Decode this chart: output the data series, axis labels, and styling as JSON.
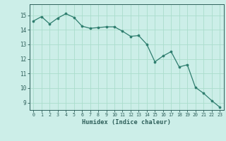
{
  "x": [
    0,
    1,
    2,
    3,
    4,
    5,
    6,
    7,
    8,
    9,
    10,
    11,
    12,
    13,
    14,
    15,
    16,
    17,
    18,
    19,
    20,
    21,
    22,
    23
  ],
  "y": [
    14.6,
    14.9,
    14.4,
    14.8,
    15.1,
    14.85,
    14.25,
    14.1,
    14.15,
    14.2,
    14.2,
    13.9,
    13.55,
    13.6,
    13.0,
    11.8,
    12.2,
    12.5,
    11.45,
    11.6,
    10.05,
    9.65,
    9.15,
    8.7
  ],
  "line_color": "#2e7d6e",
  "marker_color": "#2e7d6e",
  "bg_color": "#cceee8",
  "grid_color": "#aaddcc",
  "axis_label_color": "#2e5f5a",
  "tick_color": "#2e5f5a",
  "xlabel": "Humidex (Indice chaleur)",
  "ylim": [
    8.5,
    15.75
  ],
  "xlim": [
    -0.5,
    23.5
  ],
  "yticks": [
    9,
    10,
    11,
    12,
    13,
    14,
    15
  ],
  "xticks": [
    0,
    1,
    2,
    3,
    4,
    5,
    6,
    7,
    8,
    9,
    10,
    11,
    12,
    13,
    14,
    15,
    16,
    17,
    18,
    19,
    20,
    21,
    22,
    23
  ],
  "linewidth": 0.9,
  "markersize": 2.2
}
